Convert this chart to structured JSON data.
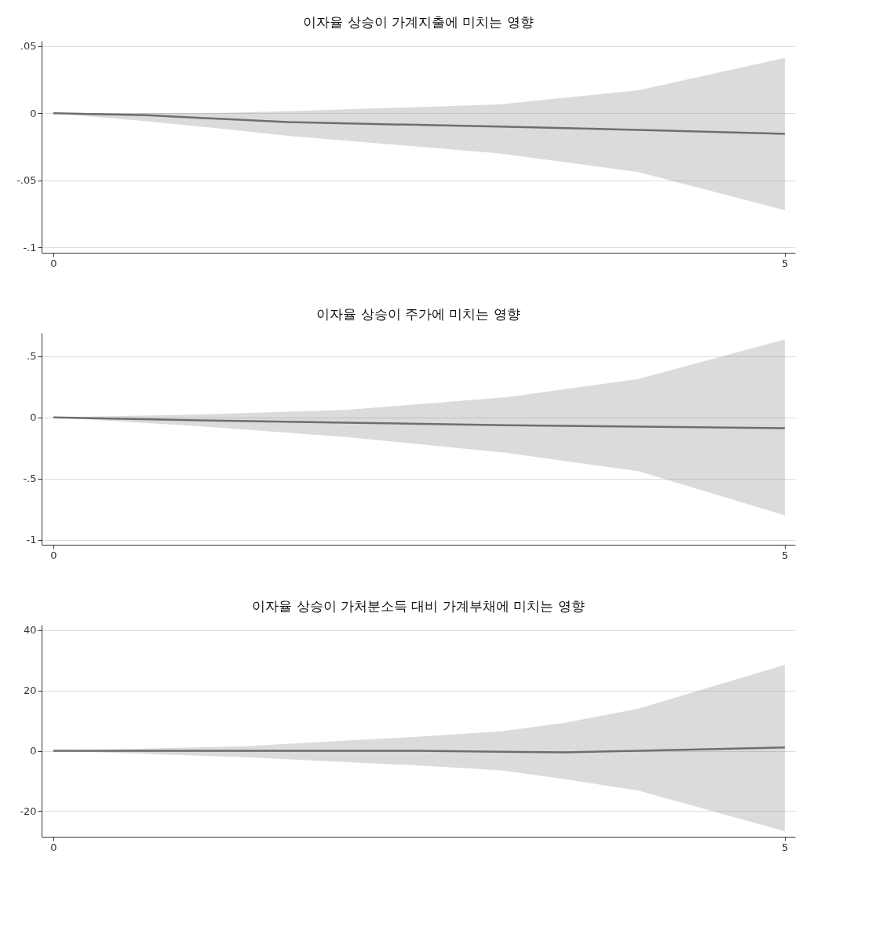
{
  "chart_data": [
    {
      "type": "line",
      "title": "이자율 상승이 가계지출에 미치는 영향",
      "xlim": [
        -0.08,
        5.07
      ],
      "xticks": [
        0,
        5
      ],
      "ylim": [
        -0.104,
        0.054
      ],
      "yticks": [
        {
          "value": 0.05,
          "label": ".05"
        },
        0,
        {
          "value": -0.05,
          "label": "-.05"
        },
        {
          "value": -0.1,
          "label": "-.1"
        }
      ],
      "grid": "y",
      "line_style": "solid",
      "marker": "none",
      "x": [
        0,
        0.64,
        1.1,
        1.6,
        3.05,
        4,
        5
      ],
      "series": [
        {
          "color": "#6e6e6e",
          "values": [
            0,
            -0.0015,
            -0.004,
            -0.0066,
            -0.01,
            -0.0124,
            -0.0153
          ],
          "lower": [
            0,
            -0.006,
            -0.011,
            -0.0168,
            -0.03,
            -0.0438,
            -0.0723
          ],
          "upper": [
            0,
            0.0001,
            0.0002,
            0.0015,
            0.0066,
            0.0172,
            0.0412
          ]
        }
      ]
    },
    {
      "type": "line",
      "title": "이자율 상승이 주가에 미치는 영향",
      "xlim": [
        -0.08,
        5.07
      ],
      "xticks": [
        0,
        5
      ],
      "ylim": [
        -1.04,
        0.69
      ],
      "yticks": [
        {
          "value": 0.5,
          "label": ".5"
        },
        0,
        {
          "value": -0.5,
          "label": "-.5"
        },
        -1
      ],
      "grid": "y",
      "line_style": "solid",
      "marker": "none",
      "x": [
        0,
        1,
        2,
        3.1,
        4,
        5
      ],
      "series": [
        {
          "color": "#6e6e6e",
          "values": [
            0,
            -0.024,
            -0.044,
            -0.064,
            -0.076,
            -0.088
          ],
          "lower": [
            0,
            -0.072,
            -0.16,
            -0.29,
            -0.44,
            -0.8
          ],
          "upper": [
            0,
            0.024,
            0.06,
            0.165,
            0.313,
            0.635
          ]
        }
      ]
    },
    {
      "type": "line",
      "title": "이자율 상승이 가처분소득 대비 가계부채에 미치는 영향",
      "xlim": [
        -0.08,
        5.07
      ],
      "xticks": [
        0,
        5
      ],
      "ylim": [
        -28.5,
        41.8
      ],
      "yticks": [
        40,
        20,
        0,
        -20
      ],
      "grid": "y",
      "line_style": "solid",
      "marker": "none",
      "x": [
        0,
        1.3,
        2.5,
        3.07,
        3.5,
        4,
        5
      ],
      "series": [
        {
          "color": "#6e6e6e",
          "values": [
            0,
            0,
            0,
            -0.3,
            -0.5,
            0,
            1.1
          ],
          "lower": [
            0,
            -2.1,
            -4.9,
            -6.5,
            -9.4,
            -13.2,
            -26.7
          ],
          "upper": [
            0,
            1.5,
            4.7,
            6.5,
            9.3,
            14,
            28.5
          ]
        }
      ]
    }
  ]
}
